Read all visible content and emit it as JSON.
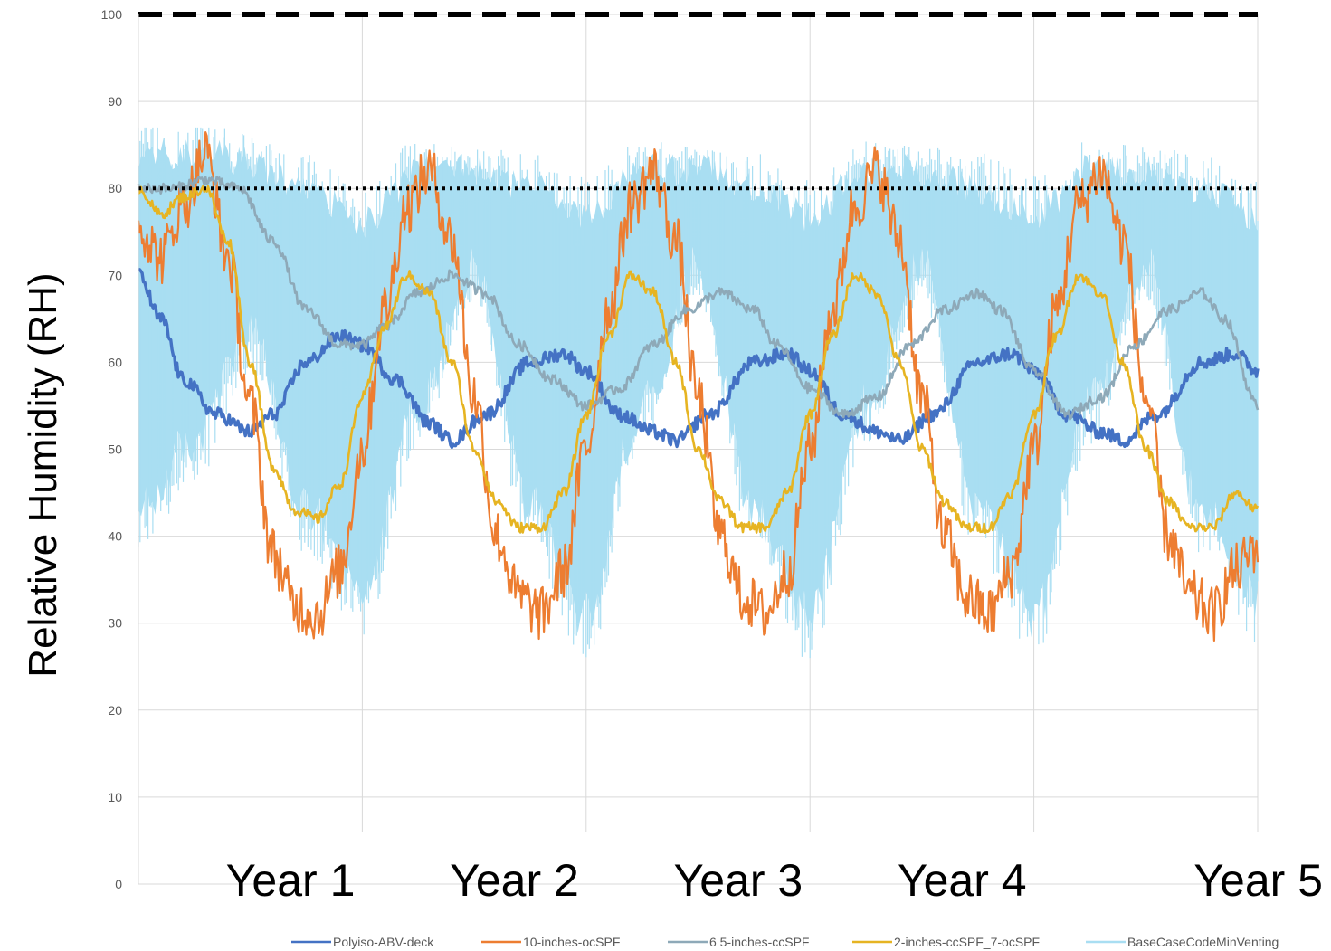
{
  "chart_data": {
    "type": "line",
    "title": "",
    "xlabel": "",
    "ylabel": "Relative Humidity (RH)",
    "ylim": [
      0,
      100
    ],
    "xlim": [
      0,
      5
    ],
    "y_ticks": [
      "0",
      "10",
      "20",
      "30",
      "40",
      "50",
      "60",
      "70",
      "80",
      "90",
      "100"
    ],
    "x_tick_values": [
      1,
      2,
      3,
      4,
      5
    ],
    "x_tick_labels": [
      "Year 1",
      "Year 2",
      "Year 3",
      "Year 4",
      "Year 5"
    ],
    "grid": true,
    "legend_position": "bottom",
    "reference_lines": [
      {
        "y": 100,
        "style": "dashed",
        "color": "#000000"
      },
      {
        "y": 80,
        "style": "dotted",
        "color": "#000000"
      }
    ],
    "series": [
      {
        "name": "BaseCaseCodeMinVenting",
        "color": "#a9def2",
        "style": "band",
        "x": [
          0,
          0.25,
          0.5,
          0.75,
          1,
          1.25,
          1.5,
          1.75,
          2,
          2.25,
          2.5,
          2.75,
          3,
          3.25,
          3.5,
          3.75,
          4,
          4.25,
          4.5,
          4.75,
          5
        ],
        "upper": [
          86,
          86,
          85,
          82,
          78,
          84,
          84,
          82,
          79,
          84,
          84,
          82,
          79,
          84,
          84,
          82,
          79,
          84,
          84,
          82,
          79
        ],
        "lower": [
          40,
          48,
          60,
          40,
          30,
          52,
          68,
          40,
          28,
          52,
          68,
          40,
          28,
          52,
          68,
          40,
          28,
          52,
          68,
          40,
          30
        ]
      },
      {
        "name": "Polyiso-ABV-deck",
        "color": "#4472c4",
        "style": "line",
        "x": [
          0,
          0.1,
          0.2,
          0.35,
          0.5,
          0.6,
          0.75,
          0.9,
          1.0,
          1.15,
          1.3,
          1.4,
          1.55,
          1.75,
          1.9,
          2.0,
          2.15,
          2.3,
          2.4,
          2.55,
          2.75,
          2.9,
          3.0,
          3.15,
          3.3,
          3.4,
          3.55,
          3.75,
          3.9,
          4.0,
          4.15,
          4.3,
          4.4,
          4.55,
          4.75,
          4.9,
          5.0
        ],
        "y": [
          70,
          65,
          58,
          54,
          52,
          54,
          60,
          63,
          62,
          58,
          53,
          51,
          54,
          60,
          61,
          59,
          54,
          52,
          51,
          54,
          60,
          61,
          59,
          54,
          52,
          51,
          54,
          60,
          61,
          59,
          54,
          52,
          51,
          54,
          60,
          61,
          59
        ]
      },
      {
        "name": "10-inches-ocSPF",
        "color": "#ed7d31",
        "style": "line",
        "x": [
          0,
          0.1,
          0.2,
          0.3,
          0.4,
          0.5,
          0.6,
          0.7,
          0.8,
          0.9,
          1.0,
          1.1,
          1.2,
          1.3,
          1.4,
          1.5,
          1.6,
          1.7,
          1.8,
          1.9,
          2.0,
          2.1,
          2.2,
          2.3,
          2.4,
          2.5,
          2.6,
          2.7,
          2.8,
          2.9,
          3.0,
          3.1,
          3.2,
          3.3,
          3.4,
          3.5,
          3.6,
          3.7,
          3.8,
          3.9,
          4.0,
          4.1,
          4.2,
          4.3,
          4.4,
          4.5,
          4.6,
          4.7,
          4.8,
          4.9,
          5.0
        ],
        "y": [
          76,
          72,
          78,
          84,
          72,
          55,
          38,
          32,
          31,
          36,
          50,
          66,
          78,
          82,
          74,
          56,
          40,
          33,
          31,
          36,
          50,
          66,
          78,
          82,
          74,
          56,
          40,
          33,
          31,
          36,
          50,
          66,
          78,
          82,
          74,
          56,
          40,
          33,
          31,
          36,
          50,
          66,
          78,
          82,
          74,
          56,
          40,
          33,
          31,
          36,
          39
        ]
      },
      {
        "name": "6 5-inches-ccSPF",
        "color": "#8ea9b8",
        "style": "line",
        "x": [
          0,
          0.15,
          0.3,
          0.45,
          0.6,
          0.75,
          0.9,
          1.0,
          1.1,
          1.25,
          1.4,
          1.55,
          1.7,
          1.85,
          2.0,
          2.15,
          2.3,
          2.45,
          2.6,
          2.75,
          2.85,
          3.0,
          3.15,
          3.3,
          3.45,
          3.6,
          3.75,
          3.85,
          4.0,
          4.15,
          4.3,
          4.45,
          4.6,
          4.75,
          4.85,
          5.0
        ],
        "y": [
          80,
          80,
          81,
          80,
          74,
          66,
          62,
          62,
          64,
          68,
          70,
          68,
          62,
          58,
          55,
          57,
          62,
          66,
          68,
          66,
          62,
          57,
          54,
          56,
          62,
          66,
          68,
          66,
          59,
          54,
          56,
          62,
          66,
          68,
          65,
          55
        ]
      },
      {
        "name": "2-inches-ccSPF_7-ocSPF",
        "color": "#e6b422",
        "style": "line",
        "x": [
          0,
          0.1,
          0.2,
          0.3,
          0.4,
          0.5,
          0.6,
          0.7,
          0.8,
          0.9,
          1.0,
          1.1,
          1.2,
          1.3,
          1.4,
          1.5,
          1.6,
          1.7,
          1.8,
          1.9,
          2.0,
          2.1,
          2.2,
          2.3,
          2.4,
          2.5,
          2.6,
          2.7,
          2.8,
          2.9,
          3.0,
          3.1,
          3.2,
          3.3,
          3.4,
          3.5,
          3.6,
          3.7,
          3.8,
          3.9,
          4.0,
          4.1,
          4.2,
          4.3,
          4.4,
          4.5,
          4.6,
          4.7,
          4.8,
          4.9,
          5.0
        ],
        "y": [
          80,
          77,
          79,
          80,
          74,
          60,
          48,
          43,
          42,
          46,
          56,
          64,
          70,
          68,
          60,
          50,
          44,
          41,
          41,
          45,
          54,
          63,
          70,
          68,
          60,
          50,
          44,
          41,
          41,
          45,
          54,
          63,
          70,
          68,
          60,
          50,
          44,
          41,
          41,
          45,
          54,
          63,
          70,
          68,
          60,
          50,
          44,
          41,
          41,
          45,
          43
        ]
      }
    ]
  }
}
